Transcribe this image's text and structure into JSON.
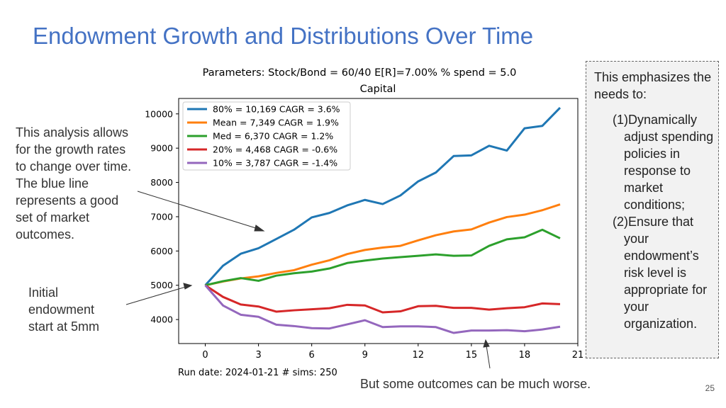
{
  "slide": {
    "title": "Endowment Growth and Distributions Over Time",
    "left_note": "This analysis allows for the growth rates to change over time. The blue line represents a good set of market outcomes.",
    "init_note": "Initial endowment start at 5mm",
    "bottom_note": "But some outcomes can be much worse.",
    "page_number": "25",
    "side_box": {
      "intro": "This emphasizes the needs to:",
      "items": [
        "(1)Dynamically adjust spending policies in response to market conditions;",
        "(2)Ensure that your endowment’s risk level is appropriate for your organization."
      ]
    }
  },
  "chart_data": {
    "type": "line",
    "title": "Parameters: Stock/Bond = 60/40 E[R]=7.00%  % spend = 5.0",
    "subtitle": "Capital",
    "footer": "Run date: 2024-01-21  # sims: 250",
    "xlim": [
      -1.5,
      21
    ],
    "ylim": [
      3300,
      10450
    ],
    "xticks": [
      0,
      3,
      6,
      9,
      12,
      15,
      18,
      21
    ],
    "yticks": [
      4000,
      5000,
      6000,
      7000,
      8000,
      9000,
      10000
    ],
    "legend_position": "top-left",
    "x": [
      0,
      1,
      2,
      3,
      4,
      5,
      6,
      7,
      8,
      9,
      10,
      11,
      12,
      13,
      14,
      15,
      16,
      17,
      18,
      19,
      20
    ],
    "series": [
      {
        "name": "80% = 10,169  CAGR = 3.6%",
        "color": "#1f77b4",
        "values": [
          5000,
          5570,
          5920,
          6080,
          6350,
          6620,
          6980,
          7110,
          7330,
          7490,
          7370,
          7620,
          8030,
          8290,
          8770,
          8790,
          9070,
          8930,
          9580,
          9650,
          10180
        ]
      },
      {
        "name": "Mean = 7,349  CAGR = 1.9%",
        "color": "#ff7f0e",
        "values": [
          5000,
          5110,
          5200,
          5260,
          5360,
          5440,
          5600,
          5730,
          5910,
          6030,
          6100,
          6150,
          6310,
          6460,
          6570,
          6630,
          6830,
          6990,
          7060,
          7190,
          7360
        ]
      },
      {
        "name": "Med = 6,370  CAGR = 1.2%",
        "color": "#2ca02c",
        "values": [
          5000,
          5120,
          5210,
          5130,
          5280,
          5350,
          5400,
          5490,
          5650,
          5720,
          5780,
          5820,
          5860,
          5900,
          5860,
          5870,
          6150,
          6340,
          6400,
          6620,
          6370
        ]
      },
      {
        "name": "20% = 4,468  CAGR = -0.6%",
        "color": "#d62728",
        "values": [
          5000,
          4660,
          4440,
          4380,
          4230,
          4270,
          4300,
          4330,
          4430,
          4410,
          4210,
          4240,
          4390,
          4400,
          4340,
          4340,
          4290,
          4330,
          4360,
          4470,
          4450
        ]
      },
      {
        "name": "10% = 3,787  CAGR = -1.4%",
        "color": "#9467bd",
        "values": [
          5000,
          4410,
          4140,
          4080,
          3850,
          3810,
          3750,
          3740,
          3860,
          3980,
          3780,
          3800,
          3800,
          3780,
          3610,
          3680,
          3680,
          3690,
          3660,
          3710,
          3790
        ]
      }
    ]
  }
}
